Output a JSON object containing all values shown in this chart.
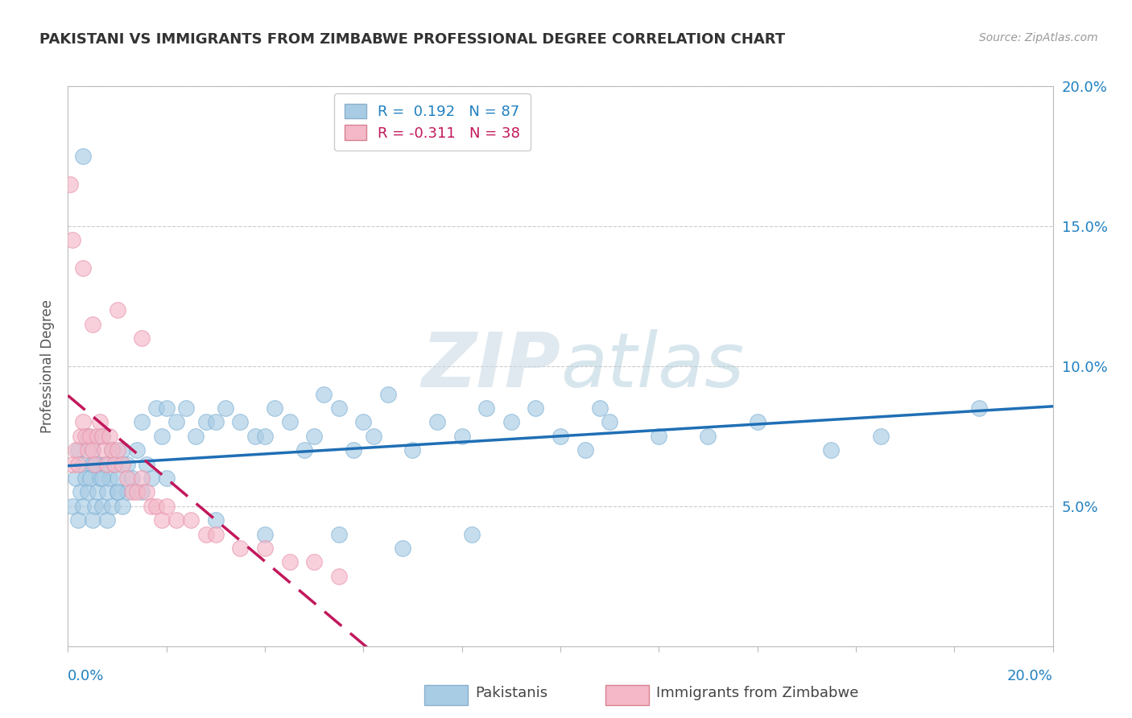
{
  "title": "PAKISTANI VS IMMIGRANTS FROM ZIMBABWE PROFESSIONAL DEGREE CORRELATION CHART",
  "source": "Source: ZipAtlas.com",
  "ylabel": "Professional Degree",
  "xlim": [
    0.0,
    20.0
  ],
  "ylim": [
    0.0,
    20.0
  ],
  "blue_color": "#a8cce4",
  "pink_color": "#f4b8c8",
  "blue_line_color": "#1f6fb5",
  "pink_line_color": "#c2185b",
  "watermark_zip": "ZIP",
  "watermark_atlas": "atlas",
  "pakistanis_x": [
    0.1,
    0.15,
    0.2,
    0.2,
    0.25,
    0.3,
    0.3,
    0.35,
    0.4,
    0.4,
    0.45,
    0.5,
    0.5,
    0.55,
    0.6,
    0.6,
    0.65,
    0.7,
    0.7,
    0.75,
    0.8,
    0.8,
    0.85,
    0.9,
    0.9,
    0.95,
    1.0,
    1.0,
    1.1,
    1.1,
    1.2,
    1.2,
    1.3,
    1.4,
    1.5,
    1.6,
    1.7,
    1.8,
    1.9,
    2.0,
    2.2,
    2.4,
    2.6,
    2.8,
    3.0,
    3.2,
    3.5,
    3.8,
    4.0,
    4.2,
    4.5,
    4.8,
    5.0,
    5.2,
    5.5,
    5.8,
    6.0,
    6.2,
    6.5,
    7.0,
    7.5,
    8.0,
    8.5,
    9.0,
    9.5,
    10.0,
    10.5,
    11.0,
    12.0,
    13.0,
    14.0,
    15.5,
    16.5,
    18.5,
    0.3,
    0.5,
    0.7,
    1.0,
    1.5,
    2.0,
    3.0,
    4.0,
    5.5,
    6.8,
    8.2,
    10.8
  ],
  "pakistanis_y": [
    5.0,
    6.0,
    4.5,
    7.0,
    5.5,
    6.5,
    5.0,
    6.0,
    7.5,
    5.5,
    6.0,
    4.5,
    7.0,
    5.0,
    6.5,
    5.5,
    6.0,
    5.0,
    7.5,
    6.5,
    5.5,
    4.5,
    6.0,
    5.0,
    7.0,
    6.5,
    5.5,
    6.0,
    7.0,
    5.0,
    6.5,
    5.5,
    6.0,
    7.0,
    8.0,
    6.5,
    6.0,
    8.5,
    7.5,
    8.5,
    8.0,
    8.5,
    7.5,
    8.0,
    8.0,
    8.5,
    8.0,
    7.5,
    7.5,
    8.5,
    8.0,
    7.0,
    7.5,
    9.0,
    8.5,
    7.0,
    8.0,
    7.5,
    9.0,
    7.0,
    8.0,
    7.5,
    8.5,
    8.0,
    8.5,
    7.5,
    7.0,
    8.0,
    7.5,
    7.5,
    8.0,
    7.0,
    7.5,
    8.5,
    17.5,
    6.5,
    6.0,
    5.5,
    5.5,
    6.0,
    4.5,
    4.0,
    4.0,
    3.5,
    4.0,
    8.5
  ],
  "zimbabwe_x": [
    0.1,
    0.15,
    0.2,
    0.25,
    0.3,
    0.35,
    0.4,
    0.45,
    0.5,
    0.55,
    0.6,
    0.65,
    0.7,
    0.75,
    0.8,
    0.85,
    0.9,
    0.95,
    1.0,
    1.1,
    1.2,
    1.3,
    1.4,
    1.5,
    1.6,
    1.7,
    1.8,
    1.9,
    2.0,
    2.2,
    2.5,
    2.8,
    3.0,
    3.5,
    4.0,
    4.5,
    5.0,
    5.5
  ],
  "zimbabwe_y": [
    6.5,
    7.0,
    6.5,
    7.5,
    8.0,
    7.5,
    7.0,
    7.5,
    7.0,
    6.5,
    7.5,
    8.0,
    7.5,
    7.0,
    6.5,
    7.5,
    7.0,
    6.5,
    7.0,
    6.5,
    6.0,
    5.5,
    5.5,
    6.0,
    5.5,
    5.0,
    5.0,
    4.5,
    5.0,
    4.5,
    4.5,
    4.0,
    4.0,
    3.5,
    3.5,
    3.0,
    3.0,
    2.5
  ],
  "zimbabwe_outliers_x": [
    0.05,
    0.1,
    0.3,
    0.5,
    1.0,
    1.5
  ],
  "zimbabwe_outliers_y": [
    16.5,
    14.5,
    13.5,
    11.5,
    12.0,
    11.0
  ]
}
